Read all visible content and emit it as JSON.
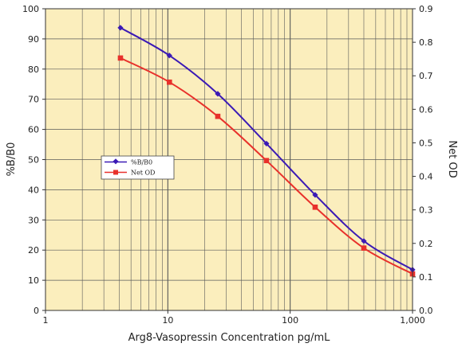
{
  "chart_data": {
    "type": "line",
    "title": "",
    "xlabel": "Arg8-Vasopressin Concentration pg/mL",
    "ylabel": "%B/B0",
    "y2label": "Net OD",
    "xscale": "log",
    "xlim": [
      1,
      1000
    ],
    "ylim": [
      0,
      100
    ],
    "y2lim": [
      0,
      0.9
    ],
    "x_ticks": [
      "1",
      "10",
      "100",
      "1,000"
    ],
    "y_ticks": [
      "0",
      "10",
      "20",
      "30",
      "40",
      "50",
      "60",
      "70",
      "80",
      "90",
      "100"
    ],
    "y2_ticks": [
      "0.0",
      "0.1",
      "0.2",
      "0.3",
      "0.4",
      "0.5",
      "0.6",
      "0.7",
      "0.8",
      "0.9"
    ],
    "grid": true,
    "legend_position": "center-left",
    "background_color": "#fbeebd",
    "grid_color": "#5a5a5a",
    "series": [
      {
        "name": "%B/B0",
        "axis": "left",
        "color": "#3b1ab5",
        "marker": "diamond",
        "x": [
          4.1,
          10.3,
          25.6,
          64,
          160,
          400,
          1000
        ],
        "y": [
          93.7,
          84.5,
          71.8,
          55.3,
          38.3,
          23.0,
          13.5
        ]
      },
      {
        "name": "Net OD",
        "axis": "right",
        "color": "#e8312b",
        "marker": "square",
        "x": [
          4.1,
          10.3,
          25.6,
          64,
          160,
          400,
          1000
        ],
        "y": [
          0.753,
          0.681,
          0.579,
          0.447,
          0.308,
          0.186,
          0.109
        ]
      }
    ]
  }
}
